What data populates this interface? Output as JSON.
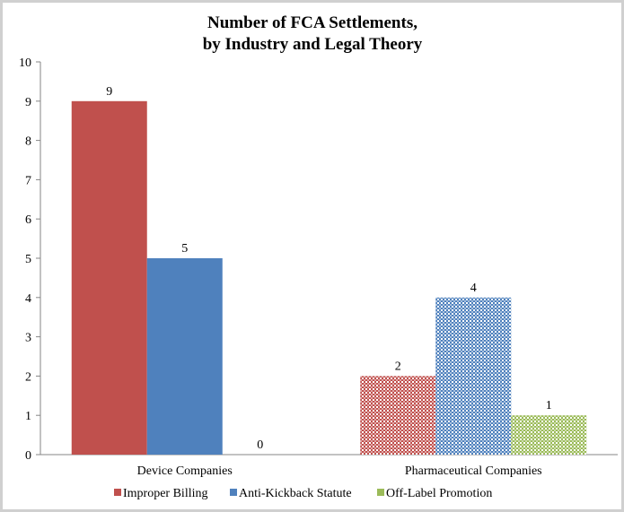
{
  "chart_data": {
    "type": "bar",
    "title_lines": [
      "Number of FCA Settlements,",
      "by Industry and Legal Theory"
    ],
    "categories": [
      "Device Companies",
      "Pharmaceutical Companies"
    ],
    "category_fill": [
      "solid",
      "checkered"
    ],
    "series": [
      {
        "name": "Improper Billing",
        "values": [
          9,
          2
        ],
        "color": "#c0504d"
      },
      {
        "name": "Anti-Kickback Statute",
        "values": [
          5,
          4
        ],
        "color": "#4f81bd"
      },
      {
        "name": "Off-Label Promotion",
        "values": [
          0,
          1
        ],
        "color": "#9bbb59"
      }
    ],
    "ylim": [
      0,
      10
    ],
    "yticks": [
      0,
      1,
      2,
      3,
      4,
      5,
      6,
      7,
      8,
      9,
      10
    ],
    "grid": false,
    "legend_position": "bottom",
    "xlabel": "",
    "ylabel": ""
  }
}
